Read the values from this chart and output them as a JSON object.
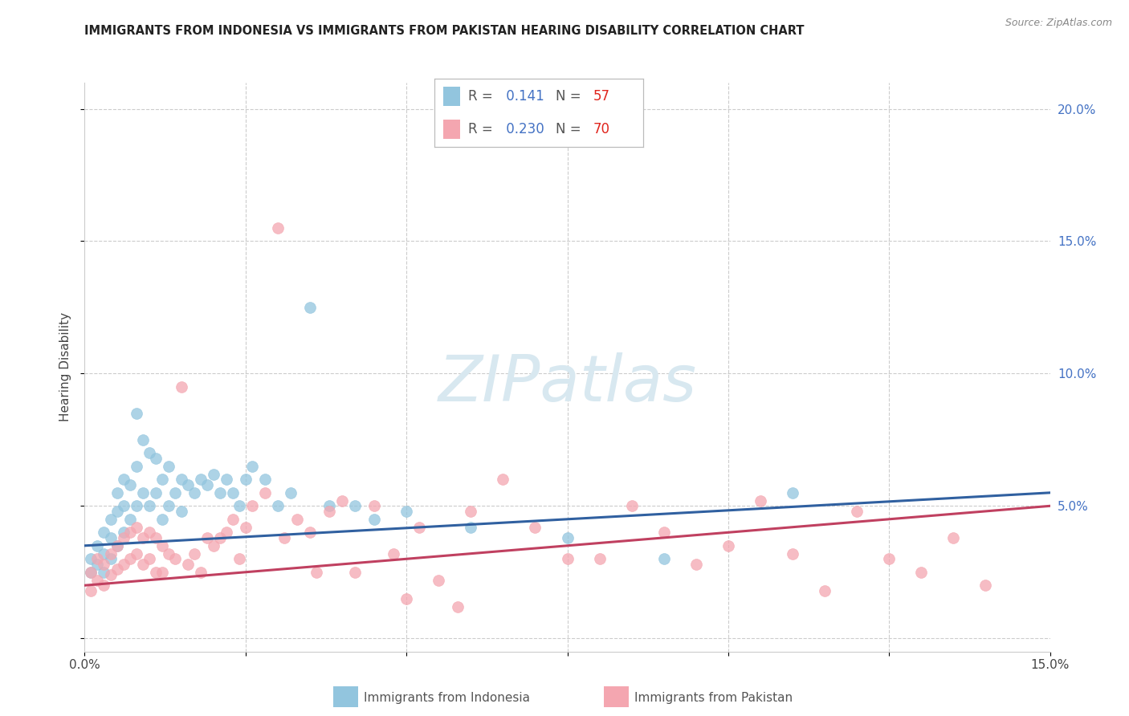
{
  "title": "IMMIGRANTS FROM INDONESIA VS IMMIGRANTS FROM PAKISTAN HEARING DISABILITY CORRELATION CHART",
  "source": "Source: ZipAtlas.com",
  "ylabel": "Hearing Disability",
  "xlim": [
    0.0,
    0.15
  ],
  "ylim": [
    -0.005,
    0.21
  ],
  "color_indonesia": "#92c5de",
  "color_pakistan": "#f4a6b0",
  "color_indonesia_line": "#3060a0",
  "color_pakistan_line": "#c04060",
  "watermark_text": "ZIPatlas",
  "R_indonesia": "0.141",
  "N_indonesia": "57",
  "R_pakistan": "0.230",
  "N_pakistan": "70",
  "legend_label_indonesia": "Immigrants from Indonesia",
  "legend_label_pakistan": "Immigrants from Pakistan",
  "indo_x": [
    0.001,
    0.001,
    0.002,
    0.002,
    0.003,
    0.003,
    0.003,
    0.004,
    0.004,
    0.004,
    0.005,
    0.005,
    0.005,
    0.006,
    0.006,
    0.006,
    0.007,
    0.007,
    0.008,
    0.008,
    0.008,
    0.009,
    0.009,
    0.01,
    0.01,
    0.011,
    0.011,
    0.012,
    0.012,
    0.013,
    0.013,
    0.014,
    0.015,
    0.015,
    0.016,
    0.017,
    0.018,
    0.019,
    0.02,
    0.021,
    0.022,
    0.023,
    0.024,
    0.025,
    0.026,
    0.028,
    0.03,
    0.032,
    0.035,
    0.038,
    0.042,
    0.045,
    0.05,
    0.06,
    0.075,
    0.09,
    0.11
  ],
  "indo_y": [
    0.03,
    0.025,
    0.035,
    0.028,
    0.04,
    0.032,
    0.025,
    0.045,
    0.038,
    0.03,
    0.055,
    0.048,
    0.035,
    0.06,
    0.05,
    0.04,
    0.058,
    0.045,
    0.085,
    0.065,
    0.05,
    0.075,
    0.055,
    0.07,
    0.05,
    0.068,
    0.055,
    0.06,
    0.045,
    0.065,
    0.05,
    0.055,
    0.06,
    0.048,
    0.058,
    0.055,
    0.06,
    0.058,
    0.062,
    0.055,
    0.06,
    0.055,
    0.05,
    0.06,
    0.065,
    0.06,
    0.05,
    0.055,
    0.125,
    0.05,
    0.05,
    0.045,
    0.048,
    0.042,
    0.038,
    0.03,
    0.055
  ],
  "pak_x": [
    0.001,
    0.001,
    0.002,
    0.002,
    0.003,
    0.003,
    0.004,
    0.004,
    0.005,
    0.005,
    0.006,
    0.006,
    0.007,
    0.007,
    0.008,
    0.008,
    0.009,
    0.009,
    0.01,
    0.01,
    0.011,
    0.011,
    0.012,
    0.012,
    0.013,
    0.014,
    0.015,
    0.016,
    0.017,
    0.018,
    0.019,
    0.02,
    0.021,
    0.022,
    0.023,
    0.024,
    0.025,
    0.026,
    0.028,
    0.03,
    0.031,
    0.033,
    0.035,
    0.036,
    0.038,
    0.04,
    0.042,
    0.045,
    0.048,
    0.05,
    0.052,
    0.055,
    0.058,
    0.06,
    0.065,
    0.07,
    0.075,
    0.08,
    0.085,
    0.09,
    0.095,
    0.1,
    0.105,
    0.11,
    0.115,
    0.12,
    0.125,
    0.13,
    0.135,
    0.14
  ],
  "pak_y": [
    0.025,
    0.018,
    0.03,
    0.022,
    0.028,
    0.02,
    0.032,
    0.024,
    0.035,
    0.026,
    0.038,
    0.028,
    0.04,
    0.03,
    0.042,
    0.032,
    0.038,
    0.028,
    0.04,
    0.03,
    0.038,
    0.025,
    0.035,
    0.025,
    0.032,
    0.03,
    0.095,
    0.028,
    0.032,
    0.025,
    0.038,
    0.035,
    0.038,
    0.04,
    0.045,
    0.03,
    0.042,
    0.05,
    0.055,
    0.155,
    0.038,
    0.045,
    0.04,
    0.025,
    0.048,
    0.052,
    0.025,
    0.05,
    0.032,
    0.015,
    0.042,
    0.022,
    0.012,
    0.048,
    0.06,
    0.042,
    0.03,
    0.03,
    0.05,
    0.04,
    0.028,
    0.035,
    0.052,
    0.032,
    0.018,
    0.048,
    0.03,
    0.025,
    0.038,
    0.02
  ]
}
